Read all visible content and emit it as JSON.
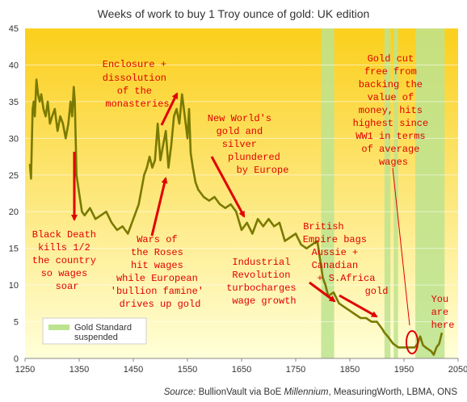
{
  "chart_data": {
    "type": "line",
    "title": "Weeks of work to buy 1 Troy ounce of gold: UK edition",
    "xlabel": "",
    "ylabel": "",
    "xlim": [
      1250,
      2025
    ],
    "ylim": [
      0,
      45
    ],
    "xticks": [
      1250,
      1350,
      1450,
      1550,
      1650,
      1750,
      1850,
      1950,
      2050
    ],
    "xtick_labels": [
      "1250",
      "1350",
      "1450",
      "1550",
      "1650",
      "1750",
      "1850",
      "1950",
      "2050"
    ],
    "yticks": [
      0,
      5,
      10,
      15,
      20,
      25,
      30,
      35,
      40,
      45
    ],
    "ytick_labels": [
      "0",
      "5",
      "10",
      "15",
      "20",
      "25",
      "30",
      "35",
      "40",
      "45"
    ],
    "grid": true,
    "series": [
      {
        "x": [
          1259,
          1261,
          1264,
          1266,
          1268,
          1271,
          1274,
          1277,
          1280,
          1284,
          1288,
          1292,
          1296,
          1300,
          1305,
          1310,
          1315,
          1320,
          1325,
          1330,
          1334,
          1337,
          1340,
          1342,
          1345,
          1350,
          1355,
          1360,
          1370,
          1380,
          1390,
          1400,
          1410,
          1420,
          1430,
          1440,
          1450,
          1460,
          1470,
          1475,
          1480,
          1485,
          1490,
          1495,
          1500,
          1505,
          1510,
          1515,
          1520,
          1525,
          1530,
          1535,
          1540,
          1545,
          1550,
          1553,
          1556,
          1560,
          1565,
          1570,
          1580,
          1590,
          1600,
          1610,
          1620,
          1630,
          1640,
          1650,
          1660,
          1670,
          1680,
          1690,
          1700,
          1710,
          1720,
          1730,
          1740,
          1750,
          1760,
          1770,
          1780,
          1790,
          1800,
          1805,
          1810,
          1820,
          1830,
          1840,
          1850,
          1860,
          1870,
          1880,
          1890,
          1900,
          1910,
          1914,
          1920,
          1930,
          1940,
          1950,
          1960,
          1970,
          1975,
          1980,
          1985,
          1990,
          2000,
          2005,
          2010,
          2015,
          2020
        ],
        "values": [
          26.5,
          24.5,
          34,
          35,
          33,
          38,
          36,
          35,
          36,
          34,
          33,
          35,
          32,
          33,
          34,
          31,
          33,
          32,
          30,
          32,
          35,
          33,
          37,
          35,
          25,
          22.5,
          20,
          19.5,
          20.5,
          19,
          19.5,
          20,
          18.5,
          17.5,
          18,
          17,
          19,
          21,
          25,
          26,
          27.5,
          26,
          27,
          32,
          27,
          29,
          31,
          26,
          29,
          33,
          34,
          32,
          36,
          33,
          30,
          34,
          28,
          26,
          24,
          23,
          22,
          21.5,
          22,
          21,
          20.5,
          21,
          20,
          17.5,
          18.5,
          17,
          19,
          18,
          19,
          18,
          18.5,
          16,
          16.5,
          17,
          15.5,
          15,
          15.5,
          16,
          11,
          10,
          8.5,
          9,
          7.5,
          7,
          6.5,
          6,
          5.5,
          5.5,
          5,
          5,
          4,
          3.5,
          3,
          2,
          1.5,
          1.5,
          1.5,
          1.5,
          2,
          3,
          1.8,
          1.5,
          1,
          0.5,
          1.5,
          2,
          3.5
        ]
      }
    ],
    "shaded_periods": [
      {
        "label": "Gold Standard suspended",
        "start": 1797,
        "end": 1821
      },
      {
        "label": "Gold Standard suspended",
        "start": 1914,
        "end": 1925
      },
      {
        "label": "Gold Standard suspended",
        "start": 1931,
        "end": 1939
      },
      {
        "label": "Gold Standard suspended",
        "start": 1971,
        "end": 2025
      }
    ],
    "legend": {
      "label_line1": "Gold Standard",
      "label_line2": "suspended",
      "placement": "bottom-left"
    },
    "annotations": [
      {
        "lines": [
          "Enclosure +",
          "dissolution",
          "of the",
          "monasteries"
        ]
      },
      {
        "lines": [
          "New World's",
          "gold and",
          "silver",
          "plundered",
          "by Europe"
        ]
      },
      {
        "lines": [
          "Gold cut",
          "free from",
          "backing the",
          "value of",
          "money, hits",
          "highest since",
          "WW1 in terms",
          "of average",
          "wages"
        ]
      },
      {
        "lines": [
          "Black Death",
          "kills 1/2",
          "the country",
          "so wages",
          "soar"
        ]
      },
      {
        "lines": [
          "Wars of",
          "the Roses",
          "hit wages",
          "while European",
          "'bullion famine'",
          "drives up gold"
        ]
      },
      {
        "lines": [
          "Industrial",
          "Revolution",
          "turbocharges",
          "wage growth"
        ]
      },
      {
        "lines": [
          "British",
          "Empire bags",
          "Aussie +",
          "Canadian",
          "+ S.Africa",
          "gold"
        ]
      },
      {
        "lines": [
          "You",
          "are",
          "here"
        ]
      }
    ],
    "source": {
      "prefix": "Source: ",
      "text1": "BullionVault via BoE ",
      "italic": "Millennium",
      "text2": ", MeasuringWorth, LBMA, ONS"
    },
    "colors": {
      "line": "#7a7a00",
      "shade": "#bde38f",
      "annotation": "#e00000",
      "bg_top": "#fbcf1c",
      "bg_bottom": "#ffffd8"
    }
  }
}
